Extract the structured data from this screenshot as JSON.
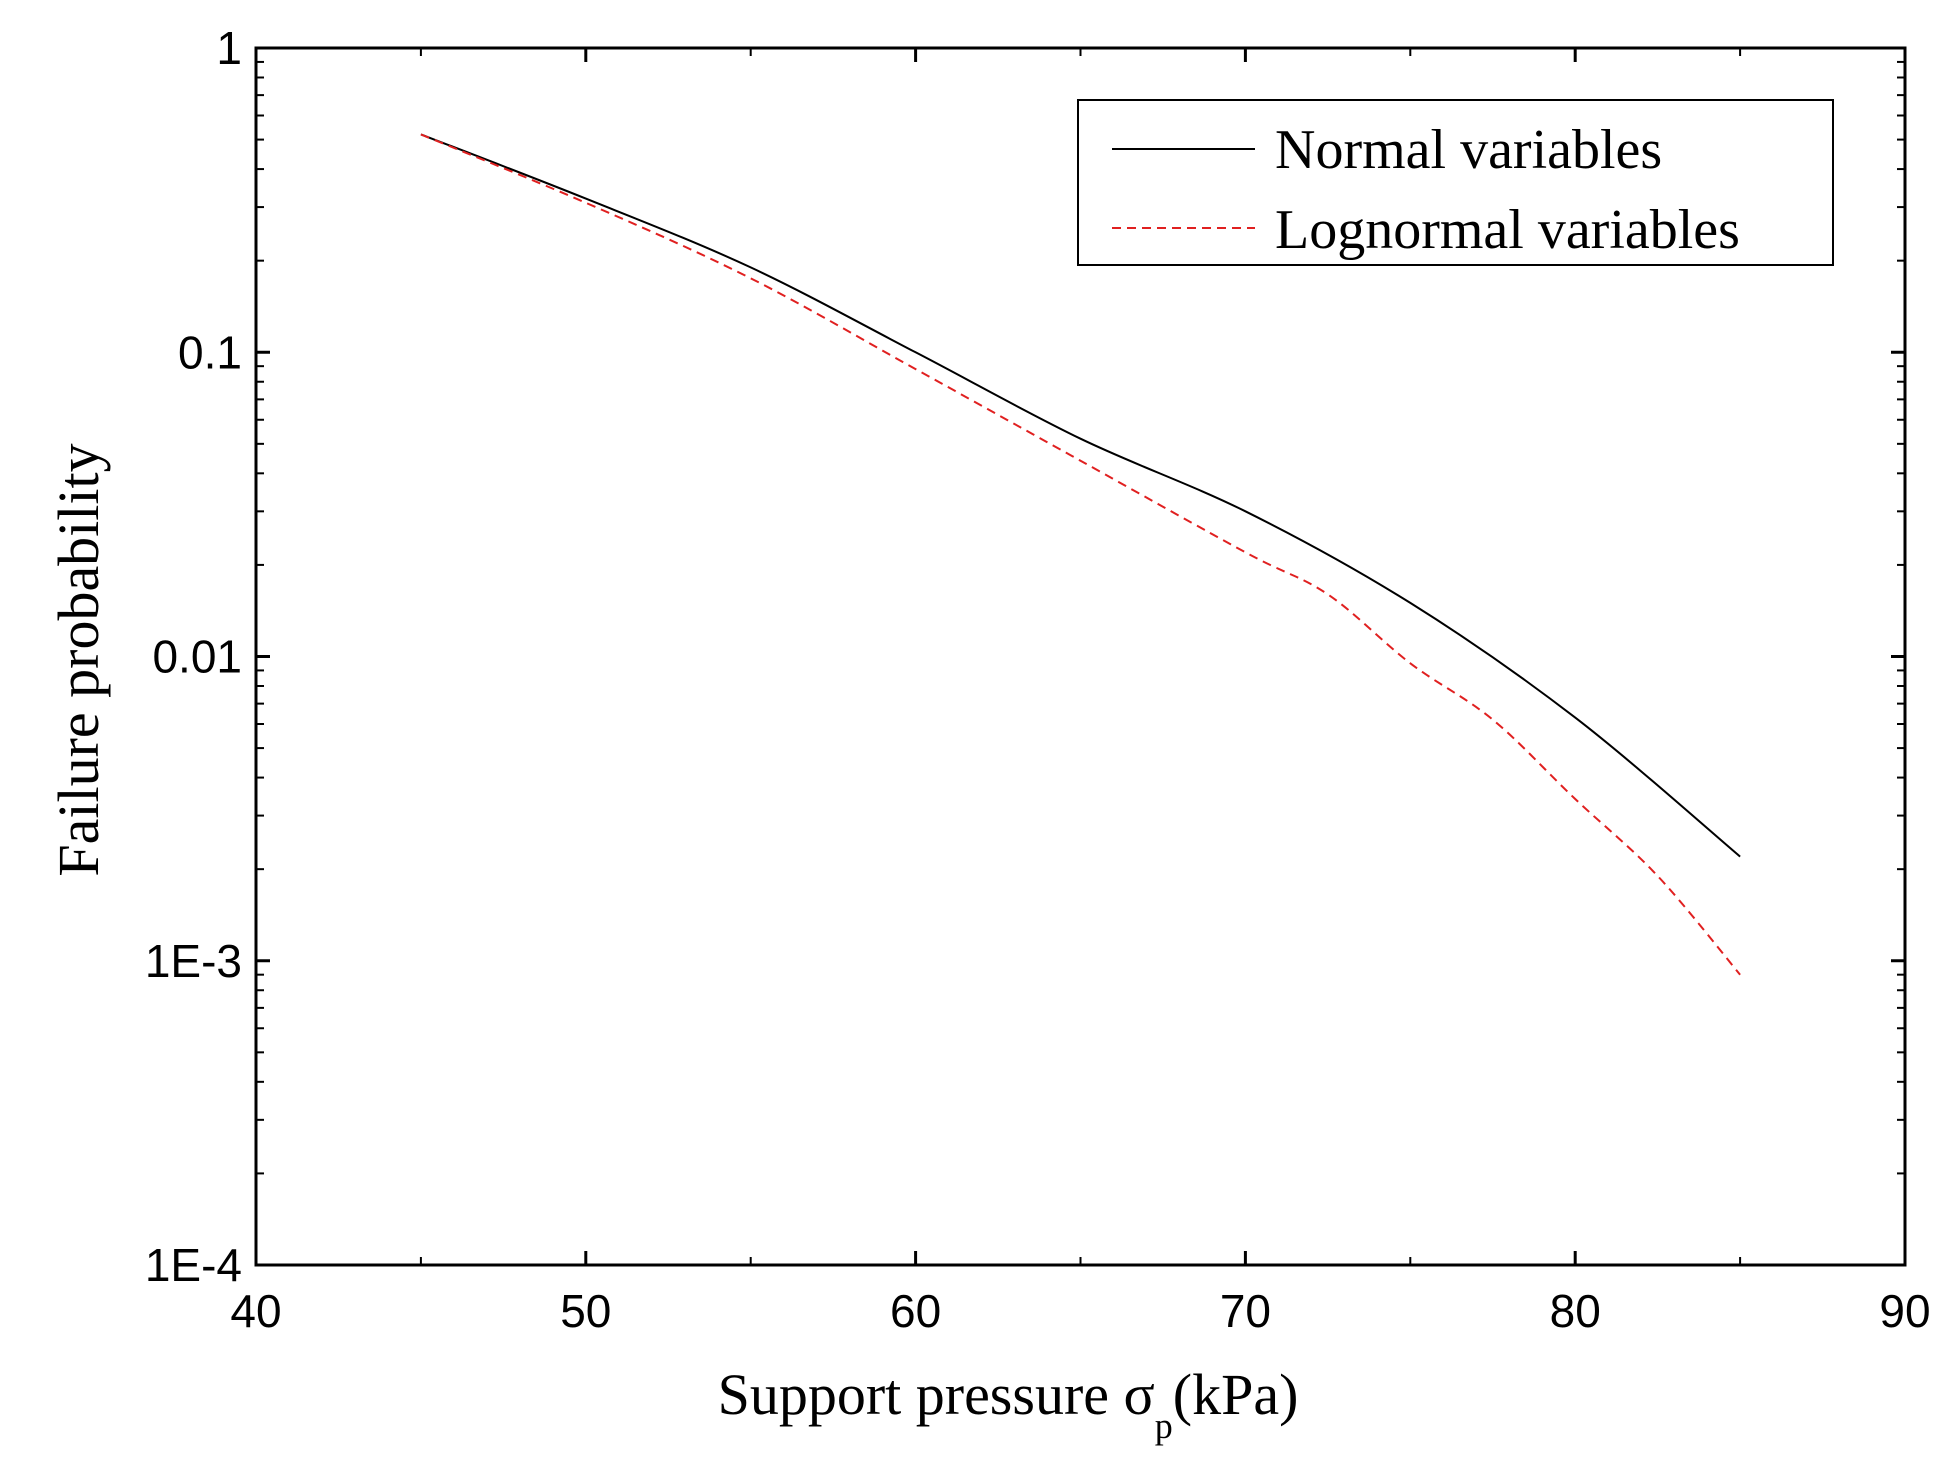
{
  "chart_data": {
    "type": "line",
    "xlabel_main": "Support pressure σ",
    "xlabel_sub": "p",
    "xlabel_unit": "(kPa)",
    "ylabel": "Failure probability",
    "xlim": [
      40,
      90
    ],
    "ylim": [
      0.0001,
      1
    ],
    "yscale": "log",
    "x_ticks": [
      40,
      50,
      60,
      70,
      80,
      90
    ],
    "x_tick_labels": [
      "40",
      "50",
      "60",
      "70",
      "80",
      "90"
    ],
    "y_ticks": [
      0.0001,
      0.001,
      0.01,
      0.1,
      1
    ],
    "y_tick_labels": [
      "1E-4",
      "1E-3",
      "0.01",
      "0.1",
      "1"
    ],
    "grid": false,
    "legend_position": "top-right",
    "series": [
      {
        "name": "Normal variables",
        "color": "#000000",
        "style": "solid",
        "x": [
          45,
          50,
          55,
          60,
          65,
          70,
          75,
          80,
          85
        ],
        "y": [
          0.52,
          0.32,
          0.19,
          0.1,
          0.052,
          0.03,
          0.015,
          0.0063,
          0.0022
        ]
      },
      {
        "name": "Lognormal variables",
        "color": "#e02020",
        "style": "dashed",
        "x": [
          45,
          50,
          55,
          60,
          65,
          70,
          72.5,
          75,
          77.5,
          80,
          82.5,
          85
        ],
        "y": [
          0.52,
          0.31,
          0.175,
          0.088,
          0.044,
          0.022,
          0.016,
          0.0095,
          0.0062,
          0.0034,
          0.0019,
          0.0009
        ]
      }
    ]
  }
}
